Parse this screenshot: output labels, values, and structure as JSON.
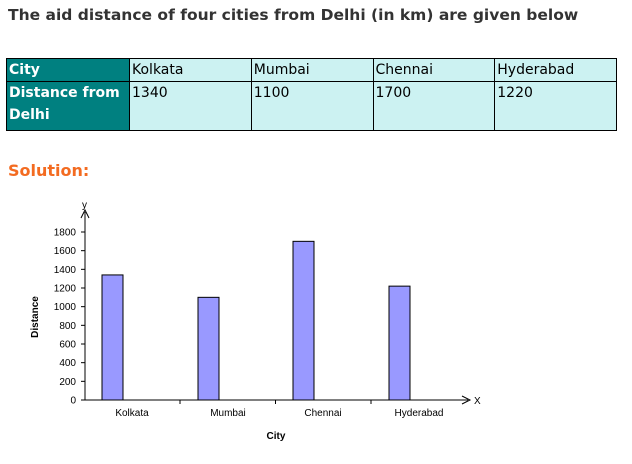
{
  "question": "The aid distance of four cities from Delhi (in km) are given below",
  "table": {
    "row1_label": "City",
    "row2_label": "Distance from Delhi",
    "cities": [
      "Kolkata",
      "Mumbai",
      "Chennai",
      "Hyderabad"
    ],
    "distances": [
      "1340",
      "1100",
      "1700",
      "1220"
    ]
  },
  "solution_heading": "Solution:",
  "chart_data": {
    "type": "bar",
    "categories": [
      "Kolkata",
      "Mumbai",
      "Chennai",
      "Hyderabad"
    ],
    "values": [
      1340,
      1100,
      1700,
      1220
    ],
    "title": "",
    "xlabel": "City",
    "ylabel": "Distance",
    "x_axis_symbol": "X",
    "y_axis_symbol": "y",
    "ylim": [
      0,
      1800
    ],
    "yticks": [
      0,
      200,
      400,
      600,
      800,
      1000,
      1200,
      1400,
      1600,
      1800
    ],
    "grid": false,
    "bar_color": "#9999ff"
  }
}
